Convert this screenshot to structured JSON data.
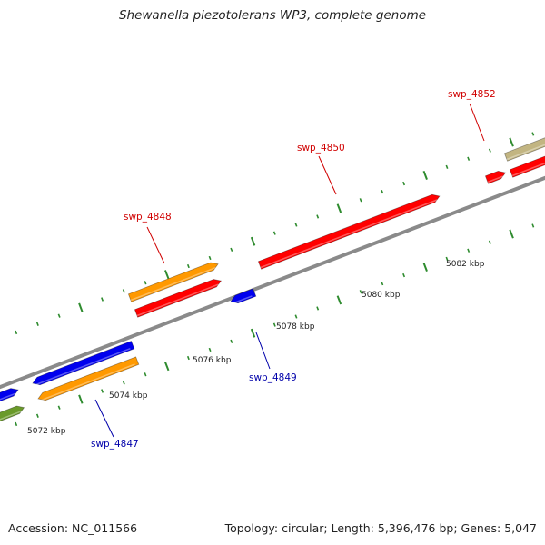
{
  "title": "Shewanella piezotolerans WP3, complete genome",
  "footer": {
    "accession": "Accession: NC_011566",
    "stats": "Topology: circular; Length: 5,396,476 bp; Genes: 5,047"
  },
  "colors": {
    "backbone": "#8a8a8a",
    "tick": "#2e8b2e",
    "label_forward": "#d00000",
    "label_reverse": "#0000aa",
    "orange": "#ff9900",
    "red": "#ff0000",
    "blue": "#0000ee",
    "khaki": "#c2b582",
    "olive": "#6a9a2a"
  },
  "scale_labels": [
    "5072 kbp",
    "5074 kbp",
    "5076 kbp",
    "5078 kbp",
    "5080 kbp",
    "5082 kbp"
  ],
  "gene_labels": [
    {
      "text": "swp_4847",
      "strand": "reverse"
    },
    {
      "text": "swp_4848",
      "strand": "forward"
    },
    {
      "text": "swp_4849",
      "strand": "reverse"
    },
    {
      "text": "swp_4850",
      "strand": "forward"
    },
    {
      "text": "swp_4852",
      "strand": "forward"
    }
  ]
}
